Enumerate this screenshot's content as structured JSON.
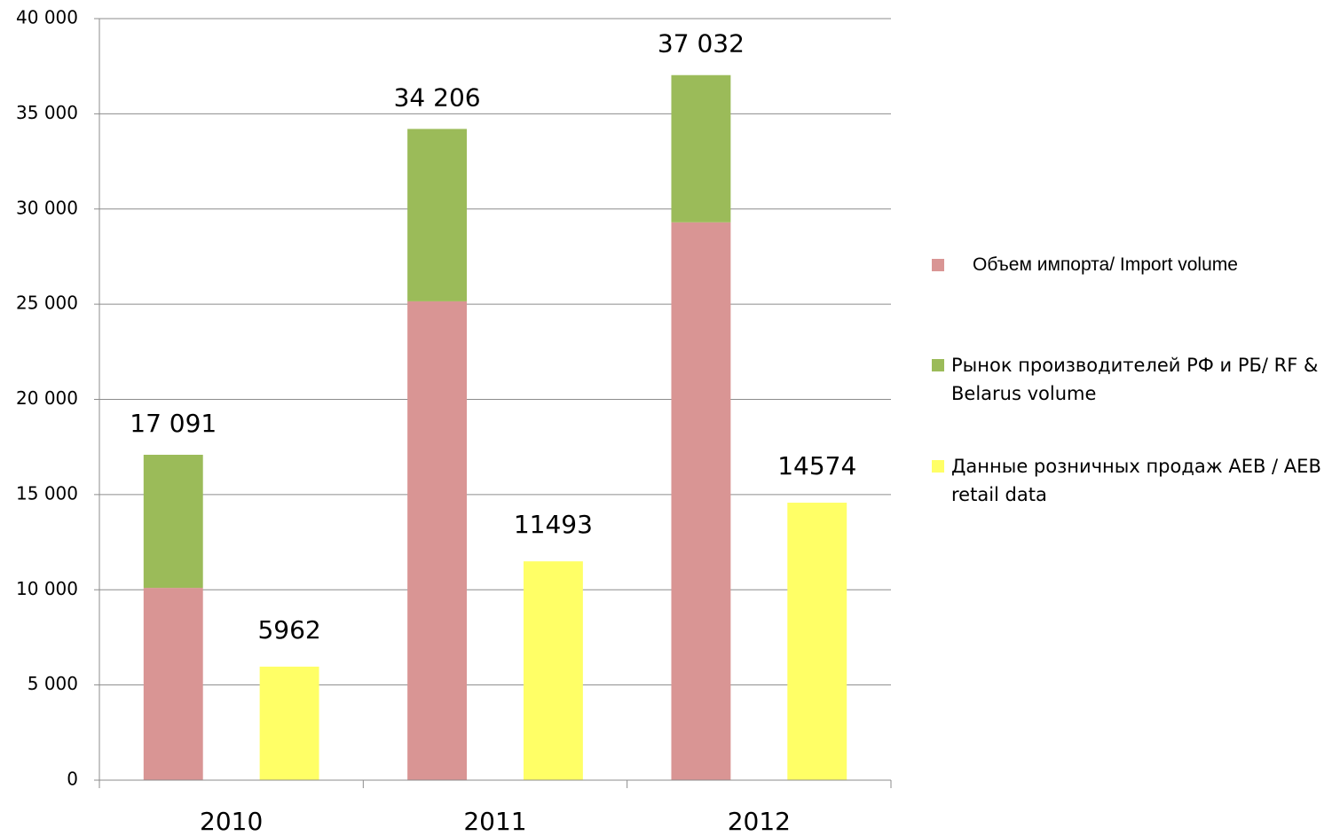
{
  "chart_data": {
    "type": "bar",
    "categories": [
      "2010",
      "2011",
      "2012"
    ],
    "series": [
      {
        "name": "Объем импорта/ Import volume",
        "color": "#d99594",
        "values": [
          10100,
          25150,
          29300
        ]
      },
      {
        "name": "Рынок производителей РФ и РБ/ RF & Belarus volume",
        "color": "#9bbb59",
        "values": [
          6991,
          9056,
          7732
        ]
      },
      {
        "name": "Данные розничных продаж AEB / AEB retail data",
        "color": "#ffff66",
        "values": [
          5962,
          11493,
          14574
        ]
      }
    ],
    "stack_totals": {
      "values": [
        17091,
        34206,
        37032
      ],
      "value_labels": [
        "17 091",
        "34 206",
        "37 032"
      ]
    },
    "ylim": [
      0,
      40000
    ],
    "yticks": [
      0,
      {
        "value": 5000,
        "label": "5 000"
      },
      {
        "value": 10000,
        "label": "10 000"
      },
      {
        "value": 15000,
        "label": "15 000"
      },
      {
        "value": 20000,
        "label": "20 000"
      },
      {
        "value": 25000,
        "label": "25 000"
      },
      {
        "value": 30000,
        "label": "30 000"
      },
      {
        "value": 35000,
        "label": "35 000"
      },
      {
        "value": 40000,
        "label": "40 000"
      }
    ],
    "grid": true,
    "legend": "right"
  }
}
